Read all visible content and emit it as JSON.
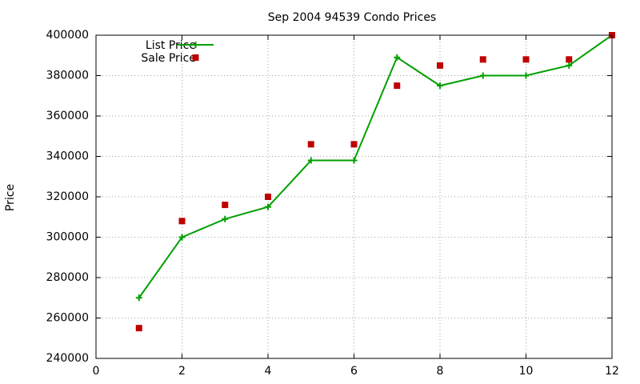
{
  "chart_data": {
    "type": "line",
    "title": "Sep 2004 94539 Condo Prices",
    "xlabel": "",
    "ylabel": "Price",
    "xlim": [
      0,
      12
    ],
    "ylim": [
      240000,
      400000
    ],
    "xticks": [
      0,
      2,
      4,
      6,
      8,
      10,
      12
    ],
    "yticks": [
      240000,
      260000,
      280000,
      300000,
      320000,
      340000,
      360000,
      380000,
      400000
    ],
    "xtick_labels": [
      "0",
      "2",
      "4",
      "6",
      "8",
      "10",
      "12"
    ],
    "ytick_labels": [
      "240000",
      "260000",
      "280000",
      "300000",
      "320000",
      "340000",
      "360000",
      "380000",
      "400000"
    ],
    "grid": true,
    "legend": "top-left",
    "series": [
      {
        "name": "List Price",
        "style": "linespoints",
        "marker": "plus",
        "color": "#00a000",
        "x": [
          1,
          2,
          3,
          4,
          5,
          6,
          7,
          8,
          9,
          10,
          11,
          12
        ],
        "y": [
          270000,
          300000,
          309000,
          315000,
          338000,
          338000,
          389000,
          375000,
          380000,
          380000,
          385000,
          400000
        ]
      },
      {
        "name": "Sale Price",
        "style": "points",
        "marker": "square",
        "color": "#c00000",
        "x": [
          1,
          2,
          3,
          4,
          5,
          6,
          7,
          8,
          9,
          10,
          11,
          12
        ],
        "y": [
          255000,
          308000,
          316000,
          320000,
          346000,
          346000,
          375000,
          385000,
          388000,
          388000,
          388000,
          400000
        ]
      }
    ]
  }
}
